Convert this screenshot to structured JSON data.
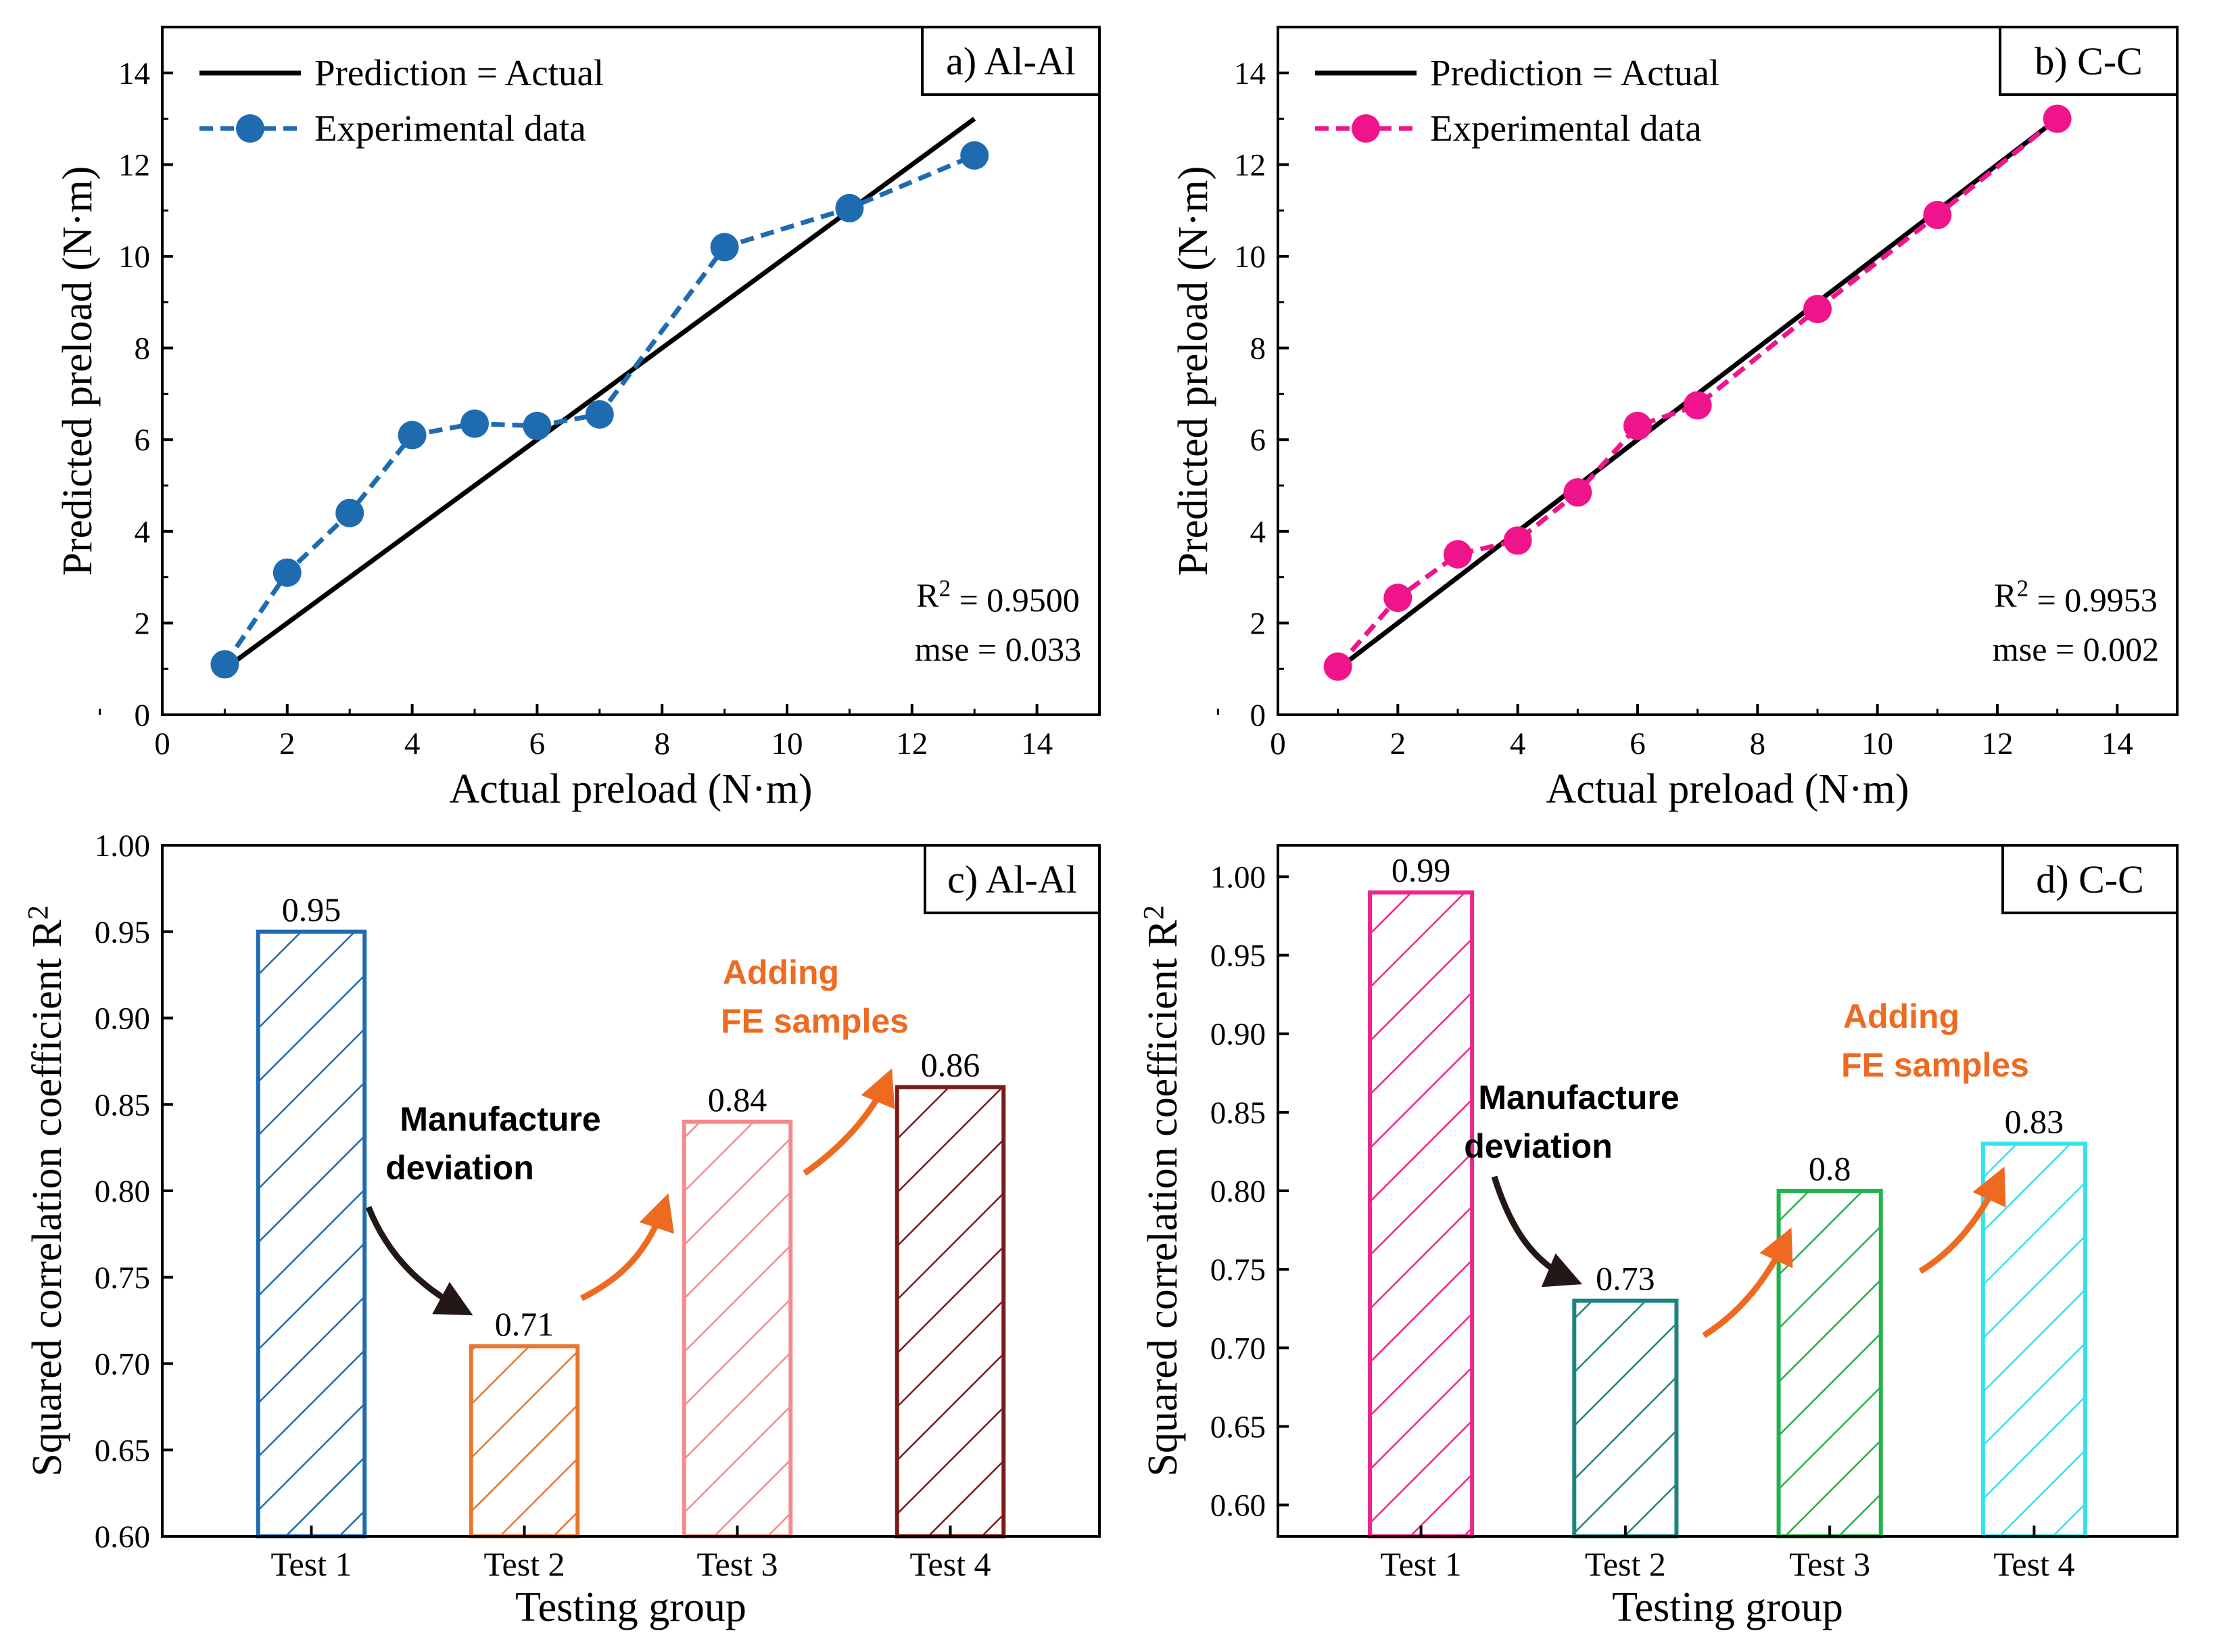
{
  "colors": {
    "identity": "#000000",
    "al_points": "#1f6bb0",
    "cc_points": "#f0148c",
    "arrow_black": "#231815",
    "arrow_orange": "#ee6a21",
    "note_orange": "#ee6a21"
  },
  "chart_data": [
    {
      "id": "a",
      "type": "line",
      "panel_label": "a) Al-Al",
      "xlabel": "Actual preload (N·m)",
      "ylabel": "Predicted preload (N·m)",
      "xlim": [
        0,
        15
      ],
      "ylim": [
        0,
        15
      ],
      "x_ticks": [
        "0",
        "2",
        "4",
        "6",
        "8",
        "10",
        "12",
        "14"
      ],
      "y_ticks": [
        "0",
        "2",
        "4",
        "6",
        "8",
        "10",
        "12",
        "14"
      ],
      "legend": [
        "Prediction = Actual",
        "Experimental data"
      ],
      "series": [
        {
          "name": "Prediction = Actual",
          "style": "solid",
          "x": [
            1,
            13
          ],
          "y": [
            1,
            13
          ]
        },
        {
          "name": "Experimental data",
          "style": "dashed-marker",
          "x": [
            1,
            2,
            3,
            4,
            5,
            6,
            7,
            9,
            11,
            13
          ],
          "y": [
            1.1,
            3.1,
            4.4,
            6.1,
            6.35,
            6.3,
            6.55,
            10.2,
            11.05,
            12.2
          ]
        }
      ],
      "stats": {
        "r2": "R² = 0.9500",
        "mse": "mse = 0.033"
      }
    },
    {
      "id": "b",
      "type": "line",
      "panel_label": "b) C-C",
      "xlabel": "Actual preload (N·m)",
      "ylabel": "Predicted preload (N·m)",
      "xlim": [
        0,
        15
      ],
      "ylim": [
        0,
        15
      ],
      "x_ticks": [
        "0",
        "2",
        "4",
        "6",
        "8",
        "10",
        "12",
        "14"
      ],
      "y_ticks": [
        "0",
        "2",
        "4",
        "6",
        "8",
        "10",
        "12",
        "14"
      ],
      "legend": [
        "Prediction = Actual",
        "Experimental data"
      ],
      "series": [
        {
          "name": "Prediction = Actual",
          "style": "solid",
          "x": [
            1,
            13
          ],
          "y": [
            1,
            13
          ]
        },
        {
          "name": "Experimental data",
          "style": "dashed-marker",
          "x": [
            1,
            2,
            3,
            4,
            5,
            6,
            7,
            9,
            11,
            13
          ],
          "y": [
            1.05,
            2.55,
            3.5,
            3.8,
            4.85,
            6.3,
            6.75,
            8.85,
            10.9,
            13.0
          ]
        }
      ],
      "stats": {
        "r2": "R² = 0.9953",
        "mse": "mse = 0.002"
      }
    },
    {
      "id": "c",
      "type": "bar",
      "panel_label": "c) Al-Al",
      "xlabel": "Testing group",
      "ylabel": "Squared correlation coefficient R²",
      "ylim": [
        0.6,
        1.0
      ],
      "y_ticks": [
        "0.60",
        "0.65",
        "0.70",
        "0.75",
        "0.80",
        "0.85",
        "0.90",
        "0.95",
        "1.00"
      ],
      "categories": [
        "Test 1",
        "Test 2",
        "Test 3",
        "Test 4"
      ],
      "values": [
        0.95,
        0.71,
        0.84,
        0.86
      ],
      "value_labels": [
        "0.95",
        "0.71",
        "0.84",
        "0.86"
      ],
      "bar_colors": [
        "#1f6bb0",
        "#e8762e",
        "#f58a8a",
        "#7a1a1a"
      ],
      "annotations": {
        "manufacture": [
          "Manufacture",
          "deviation"
        ],
        "adding": [
          "Adding",
          "FE samples"
        ]
      }
    },
    {
      "id": "d",
      "type": "bar",
      "panel_label": "d) C-C",
      "xlabel": "Testing group",
      "ylabel": "Squared correlation coefficient R²",
      "ylim": [
        0.58,
        1.02
      ],
      "y_ticks": [
        "0.60",
        "0.65",
        "0.70",
        "0.75",
        "0.80",
        "0.85",
        "0.90",
        "0.95",
        "1.00"
      ],
      "categories": [
        "Test 1",
        "Test 2",
        "Test 3",
        "Test 4"
      ],
      "values": [
        0.99,
        0.73,
        0.8,
        0.83
      ],
      "value_labels": [
        "0.99",
        "0.73",
        "0.8",
        "0.83"
      ],
      "bar_colors": [
        "#f0248e",
        "#1d8380",
        "#22b24c",
        "#35e2e8"
      ],
      "annotations": {
        "manufacture": [
          "Manufacture",
          "deviation"
        ],
        "adding": [
          "Adding",
          "FE samples"
        ]
      }
    }
  ]
}
